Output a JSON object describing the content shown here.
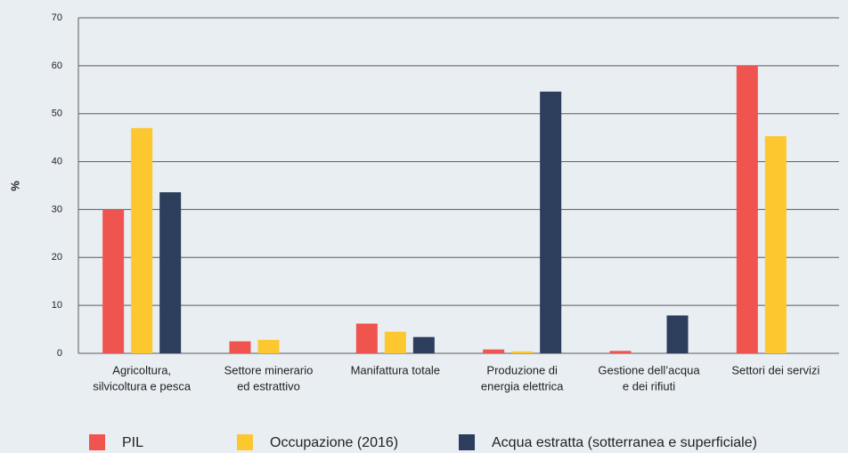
{
  "chart_data": {
    "type": "bar",
    "y_label": "%",
    "categories": [
      [
        "Agricoltura,",
        "silvicoltura e pesca"
      ],
      [
        "Settore minerario",
        "ed estrattivo"
      ],
      [
        "Manifattura totale"
      ],
      [
        "Produzione di",
        "energia elettrica"
      ],
      [
        "Gestione dell’acqua",
        "e dei rifiuti"
      ],
      [
        "Settori dei servizi"
      ]
    ],
    "series": [
      {
        "name": "PIL",
        "color": "#f0544f",
        "values": [
          30,
          2.5,
          6.2,
          0.8,
          0.5,
          60
        ]
      },
      {
        "name": "Occupazione (2016)",
        "color": "#fcc72f",
        "values": [
          47,
          2.8,
          4.5,
          0.4,
          null,
          45.3
        ]
      },
      {
        "name": "Acqua estratta (sotterranea e superficiale)",
        "color": "#2c3e5c",
        "values": [
          33.6,
          null,
          3.4,
          54.6,
          7.9,
          null
        ]
      }
    ],
    "ylim": [
      0,
      70
    ],
    "yticks": [
      0,
      10,
      20,
      30,
      40,
      50,
      60,
      70
    ],
    "grid": true
  }
}
